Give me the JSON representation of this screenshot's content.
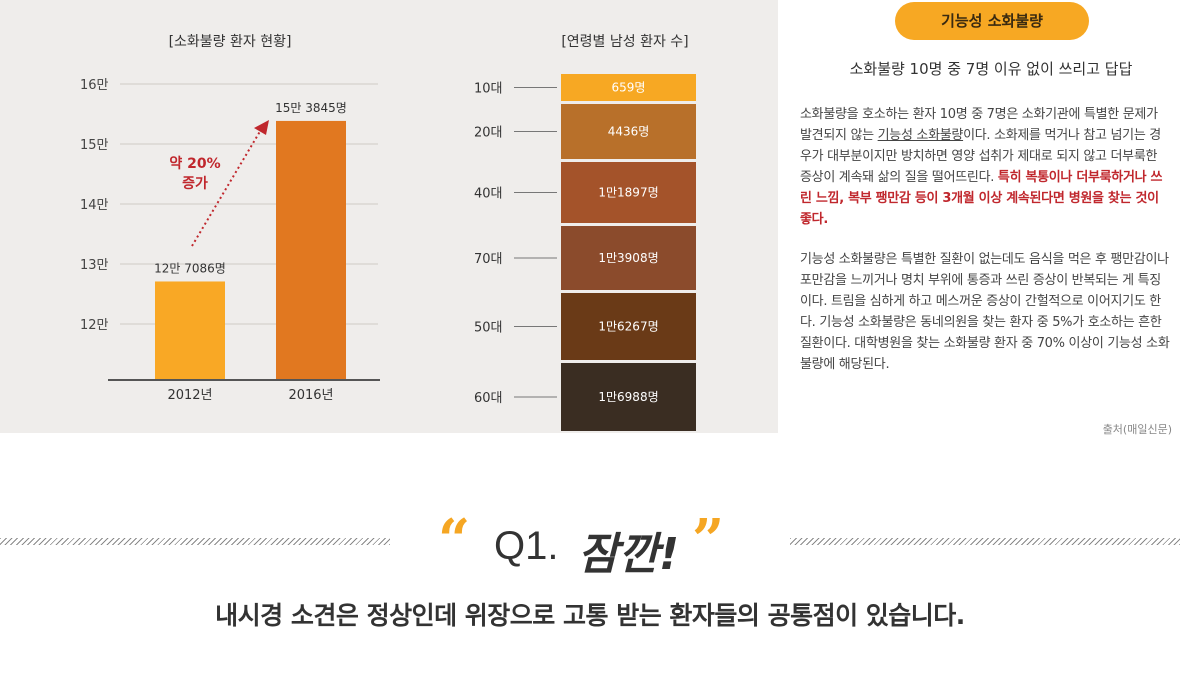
{
  "chart_data": [
    {
      "type": "bar",
      "title": "[소화불량 환자 현황]",
      "categories": [
        "2012년",
        "2016년"
      ],
      "values": [
        127086,
        153845
      ],
      "value_labels": [
        "12만 7086명",
        "15만 3845명"
      ],
      "yticks": [
        "12만",
        "13만",
        "14만",
        "15만",
        "16만"
      ],
      "ylim": [
        110000,
        160000
      ],
      "annotation": "약 20% 증가",
      "colors": [
        "#f9a825",
        "#e17820"
      ]
    },
    {
      "type": "bar",
      "title": "[연령별 남성 환자 수]",
      "categories": [
        "10대",
        "20대",
        "40대",
        "70대",
        "50대",
        "60대"
      ],
      "values": [
        659,
        4436,
        11897,
        13908,
        16267,
        16988
      ],
      "value_labels": [
        "659명",
        "4436명",
        "1만1897명",
        "1만3908명",
        "1만6267명",
        "1만6988명"
      ],
      "colors": [
        "#f7a823",
        "#b8702a",
        "#a4532a",
        "#8b4b2c",
        "#6a3a17",
        "#3a2d22"
      ]
    }
  ],
  "info": {
    "badge": "기능성 소화불량",
    "headline": "소화불량 10명 중 7명 이유 없이 쓰리고 답답",
    "para1_a": "소화불량을 호소하는 환자 10명 중 7명은 소화기관에 특별한 문제가 발견되지 않는 ",
    "para1_u": "기능성 소화불량",
    "para1_b": "이다. 소화제를 먹거나 참고 넘기는 경우가 대부분이지만 방치하면 영양 섭취가 제대로 되지 않고 더부룩한 증상이 계속돼 삶의 질을 떨어뜨린다. ",
    "para1_red": "특히 복통이나 더부룩하거나 쓰린 느낌, 복부 팽만감 등이 3개월 이상 계속된다면 병원을 찾는 것이 좋다.",
    "para2": "기능성 소화불량은 특별한 질환이 없는데도 음식을 먹은 후 팽만감이나 포만감을 느끼거나 명치 부위에 통증과 쓰린 증상이 반복되는 게 특징이다. 트림을 심하게 하고 메스꺼운 증상이 간헐적으로 이어지기도 한다. 기능성 소화불량은 동네의원을 찾는 환자 중 5%가 호소하는 흔한 질환이다. 대학병원을 찾는 소화불량 환자 중 70% 이상이 기능성 소화불량에 해당된다.",
    "source": "출처(매일신문)"
  },
  "question_section": {
    "open_quote": "“",
    "close_quote": "”",
    "label": "Q1.",
    "emphasis": "잠깐!",
    "question": "내시경 소견은 정상인데 위장으로 고통 받는 환자들의 공통점이 있습니다."
  }
}
